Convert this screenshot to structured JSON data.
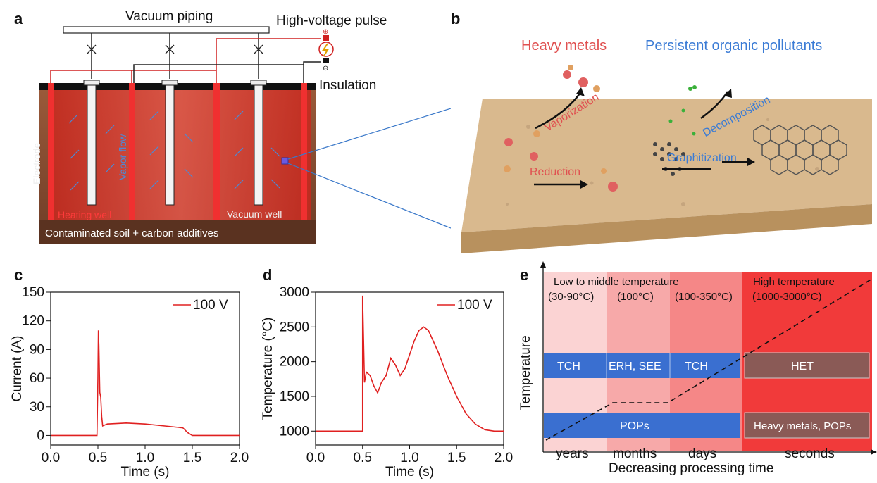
{
  "panels": {
    "a": {
      "label": "a",
      "vacuum_piping": "Vacuum piping",
      "hv_pulse": "High-voltage pulse",
      "insulation": "Insulation",
      "electrode": "Electrode",
      "vapor_flow": "Vapor flow",
      "heating_well": "Heating well",
      "vacuum_well": "Vacuum well",
      "soil": "Contaminated soil + carbon additives"
    },
    "b": {
      "label": "b",
      "heavy_metals": "Heavy metals",
      "pops": "Persistent organic pollutants",
      "vaporization": "Vaporization",
      "decomposition": "Decomposition",
      "reduction": "Reduction",
      "graphitization": "Graphitization"
    },
    "c": {
      "label": "c"
    },
    "d": {
      "label": "d"
    },
    "e": {
      "label": "e",
      "low_mid": "Low to middle temperature",
      "high": "High temperature",
      "ranges": [
        "(30-90°C)",
        "(100°C)",
        "(100-350°C)",
        "(1000-3000°C)"
      ],
      "methods_row": [
        "TCH",
        "ERH, SEE",
        "TCH",
        "HET"
      ],
      "targets_row": [
        "POPs",
        "Heavy metals, POPs"
      ],
      "times": [
        "years",
        "months",
        "days",
        "seconds"
      ],
      "ylabel": "Temperature",
      "xlabel": "Decreasing processing time"
    }
  },
  "colors": {
    "red": "#e02020",
    "blue": "#3a7bd5",
    "heat": "#ff3030"
  },
  "chart_data": [
    {
      "type": "line",
      "panel": "c",
      "xlabel": "Time (s)",
      "ylabel": "Current (A)",
      "xlim": [
        0.0,
        2.0
      ],
      "ylim": [
        -10,
        150
      ],
      "xticks": [
        "0.0",
        "0.5",
        "1.0",
        "1.5",
        "2.0"
      ],
      "yticks": [
        "0",
        "30",
        "60",
        "90",
        "120",
        "150"
      ],
      "series": [
        {
          "name": "100 V",
          "x": [
            0,
            0.49,
            0.5,
            0.505,
            0.51,
            0.52,
            0.53,
            0.54,
            0.55,
            0.6,
            0.8,
            1.0,
            1.2,
            1.4,
            1.45,
            1.5,
            1.7,
            2.0
          ],
          "y": [
            0,
            0,
            60,
            110,
            95,
            45,
            40,
            20,
            10,
            12,
            13,
            12,
            10,
            8,
            3,
            0,
            0,
            0
          ]
        }
      ]
    },
    {
      "type": "line",
      "panel": "d",
      "xlabel": "Time (s)",
      "ylabel": "Temperature (°C)",
      "xlim": [
        0.0,
        2.0
      ],
      "ylim": [
        800,
        3000
      ],
      "xticks": [
        "0.0",
        "0.5",
        "1.0",
        "1.5",
        "2.0"
      ],
      "yticks": [
        "1000",
        "1500",
        "2000",
        "2500",
        "3000"
      ],
      "series": [
        {
          "name": "100 V",
          "x": [
            0,
            0.5,
            0.5,
            0.52,
            0.54,
            0.58,
            0.62,
            0.66,
            0.7,
            0.75,
            0.8,
            0.85,
            0.9,
            0.95,
            1.0,
            1.05,
            1.1,
            1.15,
            1.2,
            1.3,
            1.4,
            1.5,
            1.6,
            1.7,
            1.8,
            1.9,
            2.0
          ],
          "y": [
            1000,
            1000,
            2950,
            1700,
            1850,
            1800,
            1650,
            1550,
            1700,
            1800,
            2050,
            1950,
            1800,
            1900,
            2100,
            2300,
            2450,
            2500,
            2450,
            2150,
            1800,
            1500,
            1250,
            1100,
            1020,
            1000,
            1000
          ]
        }
      ]
    }
  ]
}
